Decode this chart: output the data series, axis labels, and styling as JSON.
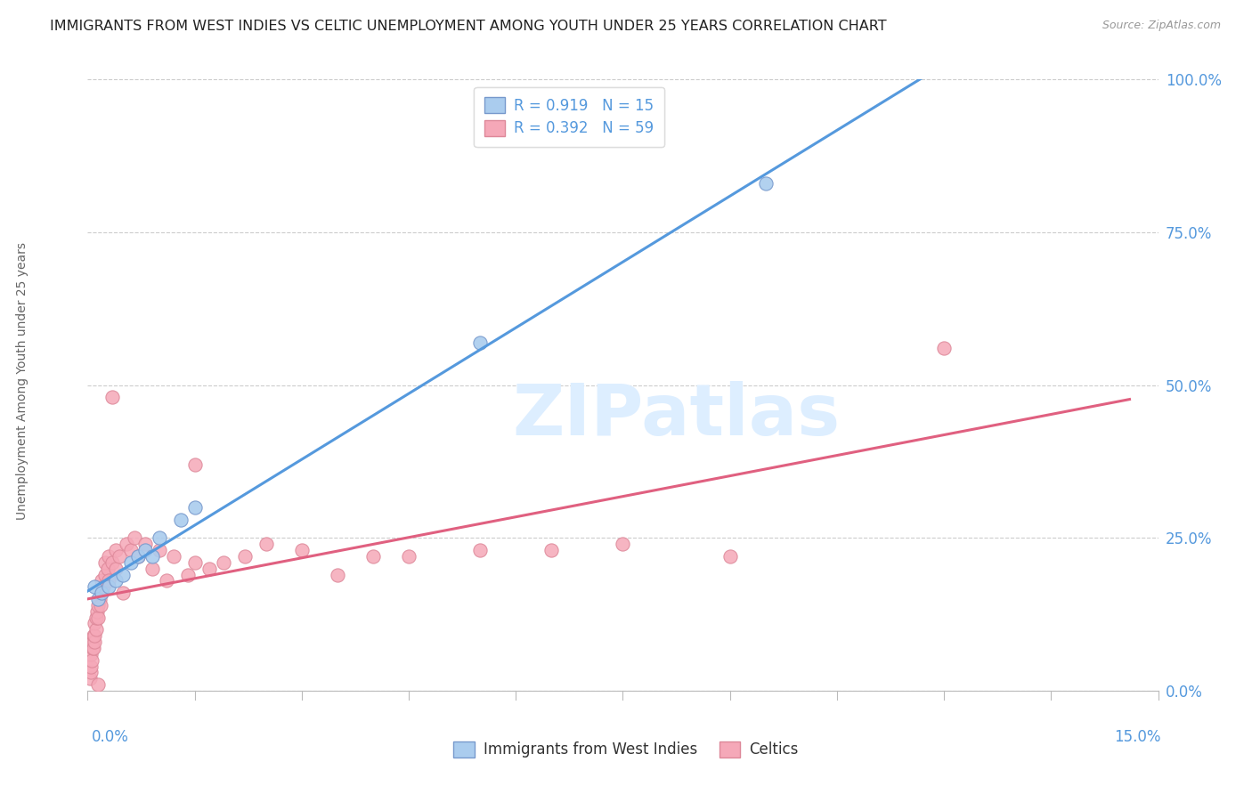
{
  "title": "IMMIGRANTS FROM WEST INDIES VS CELTIC UNEMPLOYMENT AMONG YOUTH UNDER 25 YEARS CORRELATION CHART",
  "source": "Source: ZipAtlas.com",
  "ylabel": "Unemployment Among Youth under 25 years",
  "ytick_values": [
    0,
    25,
    50,
    75,
    100
  ],
  "xlim": [
    0,
    15
  ],
  "ylim": [
    0,
    100
  ],
  "legend_top": [
    {
      "label": "R = 0.919   N = 15",
      "color": "#a8c8f0",
      "edge": "#7aaad0"
    },
    {
      "label": "R = 0.392   N = 59",
      "color": "#f5a8b8",
      "edge": "#e090a8"
    }
  ],
  "legend_bottom": [
    {
      "label": "Immigrants from West Indies",
      "color": "#a8c8f0",
      "edge": "#7aaad0"
    },
    {
      "label": "Celtics",
      "color": "#f5a8b8",
      "edge": "#e090a8"
    }
  ],
  "blue_scatter": [
    [
      0.1,
      17.0
    ],
    [
      0.15,
      15.0
    ],
    [
      0.2,
      16.0
    ],
    [
      0.3,
      17.0
    ],
    [
      0.4,
      18.0
    ],
    [
      0.5,
      19.0
    ],
    [
      0.6,
      21.0
    ],
    [
      0.7,
      22.0
    ],
    [
      0.8,
      23.0
    ],
    [
      0.9,
      22.0
    ],
    [
      1.0,
      25.0
    ],
    [
      1.3,
      28.0
    ],
    [
      1.5,
      30.0
    ],
    [
      5.5,
      57.0
    ],
    [
      9.5,
      83.0
    ]
  ],
  "pink_scatter": [
    [
      0.03,
      2.0
    ],
    [
      0.04,
      3.0
    ],
    [
      0.05,
      4.0
    ],
    [
      0.05,
      6.0
    ],
    [
      0.06,
      5.0
    ],
    [
      0.07,
      7.0
    ],
    [
      0.07,
      8.0
    ],
    [
      0.08,
      7.0
    ],
    [
      0.08,
      9.0
    ],
    [
      0.09,
      8.0
    ],
    [
      0.1,
      9.0
    ],
    [
      0.1,
      11.0
    ],
    [
      0.12,
      10.0
    ],
    [
      0.12,
      12.0
    ],
    [
      0.13,
      13.0
    ],
    [
      0.15,
      12.0
    ],
    [
      0.15,
      14.0
    ],
    [
      0.17,
      15.0
    ],
    [
      0.18,
      14.0
    ],
    [
      0.2,
      16.0
    ],
    [
      0.2,
      18.0
    ],
    [
      0.22,
      17.0
    ],
    [
      0.25,
      19.0
    ],
    [
      0.25,
      21.0
    ],
    [
      0.28,
      20.0
    ],
    [
      0.3,
      22.0
    ],
    [
      0.3,
      18.0
    ],
    [
      0.35,
      21.0
    ],
    [
      0.4,
      23.0
    ],
    [
      0.4,
      20.0
    ],
    [
      0.45,
      22.0
    ],
    [
      0.5,
      16.0
    ],
    [
      0.55,
      24.0
    ],
    [
      0.6,
      23.0
    ],
    [
      0.65,
      25.0
    ],
    [
      0.7,
      22.0
    ],
    [
      0.8,
      24.0
    ],
    [
      0.9,
      20.0
    ],
    [
      1.0,
      23.0
    ],
    [
      1.1,
      18.0
    ],
    [
      1.2,
      22.0
    ],
    [
      1.4,
      19.0
    ],
    [
      1.5,
      21.0
    ],
    [
      1.7,
      20.0
    ],
    [
      1.9,
      21.0
    ],
    [
      2.2,
      22.0
    ],
    [
      2.5,
      24.0
    ],
    [
      3.0,
      23.0
    ],
    [
      3.5,
      19.0
    ],
    [
      4.0,
      22.0
    ],
    [
      4.5,
      22.0
    ],
    [
      5.5,
      23.0
    ],
    [
      6.5,
      23.0
    ],
    [
      7.5,
      24.0
    ],
    [
      9.0,
      22.0
    ],
    [
      12.0,
      56.0
    ],
    [
      0.35,
      48.0
    ],
    [
      1.5,
      37.0
    ],
    [
      0.15,
      1.0
    ]
  ],
  "blue_line_color": "#5599dd",
  "pink_line_color": "#e06080",
  "blue_scatter_color": "#aaccee",
  "pink_scatter_color": "#f5a8b8",
  "blue_scatter_edge": "#7799cc",
  "pink_scatter_edge": "#dd8899",
  "watermark_color": "#ddeeff",
  "background_color": "#ffffff",
  "grid_color": "#cccccc",
  "title_color": "#222222",
  "title_fontsize": 11.5,
  "axis_label_color": "#666666",
  "scatter_size": 120,
  "right_tick_color": "#5599dd",
  "bottom_label_color": "#5599dd"
}
